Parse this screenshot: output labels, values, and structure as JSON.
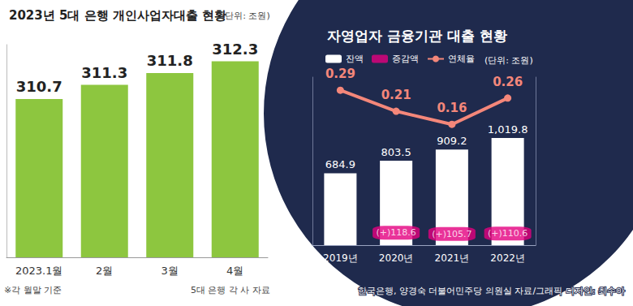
{
  "chart_data": [
    {
      "type": "bar",
      "title": "2023년 5대 은행 개인사업자대출 현황",
      "subtitle": "(단위: 조원)",
      "annotations": [
        "※각 월말 기준",
        "5대 은행 각 사 자료"
      ],
      "categories": [
        "2023.1월",
        "2월",
        "3월",
        "4월"
      ],
      "values": [
        310.7,
        311.3,
        311.8,
        312.3
      ],
      "color": "#8dc63f",
      "ylim": [
        304,
        313
      ],
      "yticks": [],
      "tick_labels": "x",
      "grid": false,
      "data_labels": true
    },
    {
      "type": "bar",
      "title": "자영업자 금융기관 대출 현황",
      "subtitle": "(단위: 조원)",
      "annotations": [
        "한국은행, 양경숙 더불어민주당 의원실 자료/그래픽 디자인: 최수아"
      ],
      "categories": [
        "2019년",
        "2020년",
        "2021년",
        "2022년"
      ],
      "series": [
        {
          "name": "잔액",
          "type": "bar",
          "color": "#ffffff",
          "values": [
            684.9,
            803.5,
            909.2,
            1019.8
          ],
          "value_labels": [
            "684.9",
            "803.5",
            "909.2",
            "1,019.8"
          ]
        },
        {
          "name": "증감액",
          "type": "scatter",
          "color": "#e4007f",
          "marker": "square",
          "values": [
            null,
            118.6,
            105.7,
            110.6
          ],
          "value_labels": [
            null,
            "(+)118.6",
            "(+)105.7",
            "(+)110.6"
          ]
        },
        {
          "name": "연체율",
          "type": "line",
          "color": "#f4877a",
          "marker": "circle",
          "axis": "y2",
          "values": [
            0.29,
            0.21,
            0.16,
            0.26
          ]
        }
      ],
      "ylim": [
        0,
        1600
      ],
      "yticks": [],
      "y2lim": [
        -0.3,
        0.34
      ],
      "y2ticks": [],
      "tick_labels": "x",
      "grid": false,
      "legend": "top",
      "data_labels": true
    }
  ]
}
